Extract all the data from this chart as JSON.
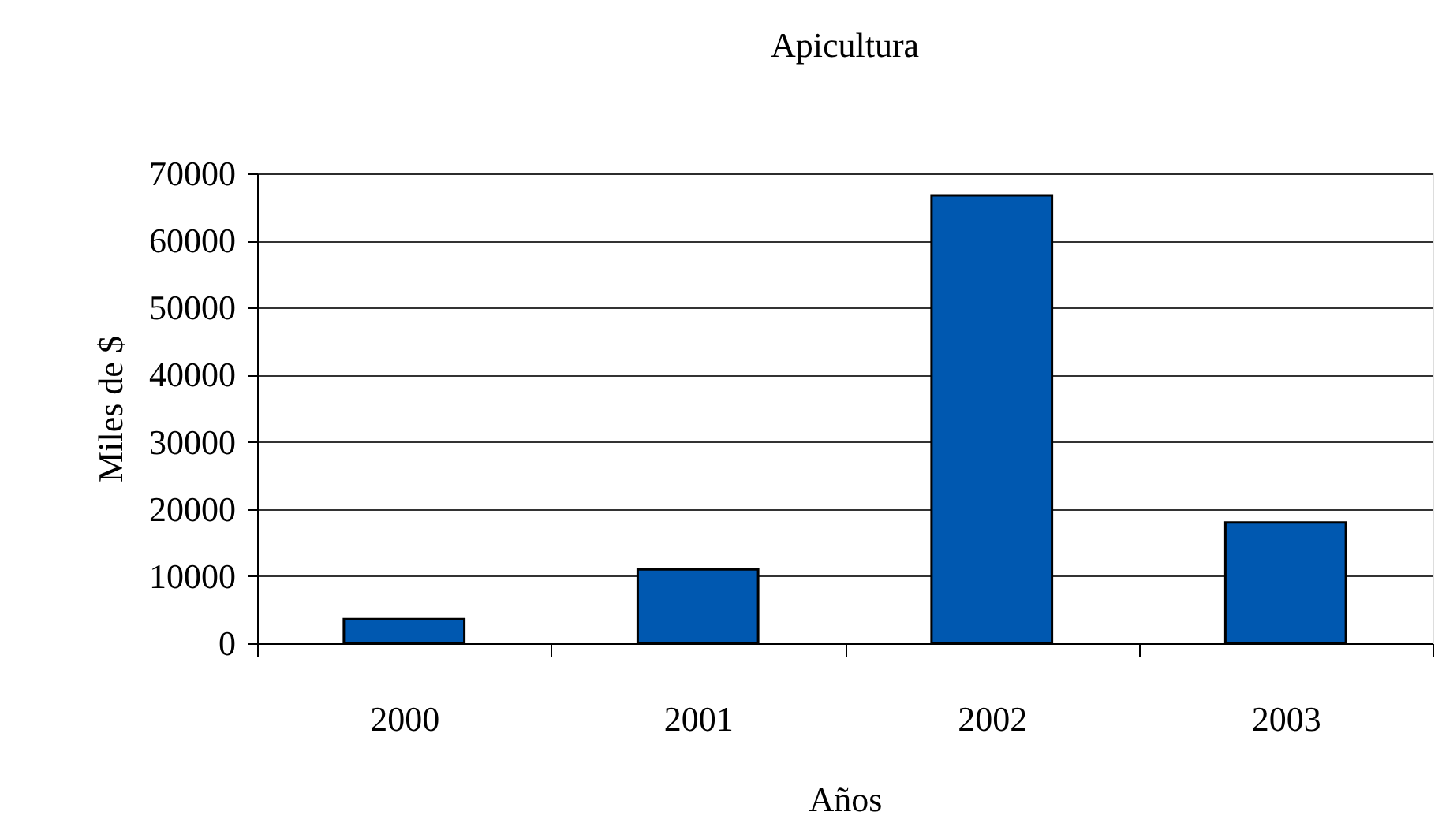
{
  "chart_data": {
    "type": "bar",
    "title": "Apicultura",
    "xlabel": "Años",
    "ylabel": "Miles de $",
    "categories": [
      "2000",
      "2001",
      "2002",
      "2003"
    ],
    "values": [
      3600,
      11000,
      66700,
      18000
    ],
    "color": "#0058b0",
    "ylim": [
      0,
      70000
    ],
    "yticks": [
      0,
      10000,
      20000,
      30000,
      40000,
      50000,
      60000,
      70000
    ],
    "grid": "y"
  }
}
